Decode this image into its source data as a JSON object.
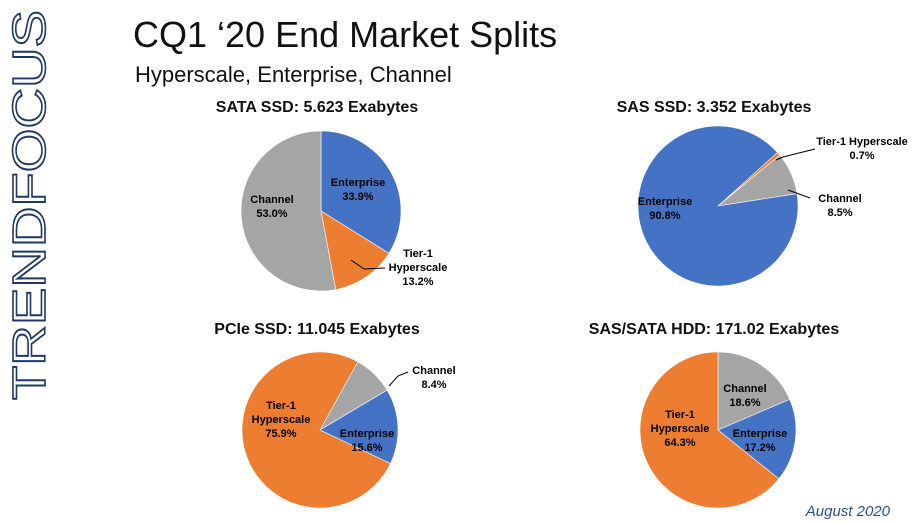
{
  "logo_text": "TRENDFOCUS",
  "slide": {
    "title": "CQ1 ‘20 End Market Splits",
    "subtitle": "Hyperscale, Enterprise, Channel",
    "footer": "August 2020"
  },
  "colors": {
    "enterprise": "#4472C4",
    "tier1": "#ED7D31",
    "channel": "#A5A5A5",
    "logo": "#1f3864",
    "footer": "#2f4f8f"
  },
  "chart_data": [
    {
      "type": "pie",
      "title": "SATA SSD:  5.623 Exabytes",
      "slices": [
        {
          "label": [
            "Enterprise",
            "33.9%"
          ],
          "value": 33.9,
          "color": "enterprise"
        },
        {
          "label": [
            "Tier-1",
            "Hyperscale",
            "13.2%"
          ],
          "value": 13.2,
          "color": "tier1"
        },
        {
          "label": [
            "Channel",
            "53.0%"
          ],
          "value": 53.0,
          "color": "channel"
        }
      ]
    },
    {
      "type": "pie",
      "title": "SAS SSD:  3.352 Exabytes",
      "slices": [
        {
          "label": [
            "Tier-1 Hyperscale",
            "0.7%"
          ],
          "value": 0.7,
          "color": "tier1"
        },
        {
          "label": [
            "Channel",
            "8.5%"
          ],
          "value": 8.5,
          "color": "channel"
        },
        {
          "label": [
            "Enterprise",
            "90.8%"
          ],
          "value": 90.8,
          "color": "enterprise"
        }
      ]
    },
    {
      "type": "pie",
      "title": "PCIe SSD:  11.045 Exabytes",
      "slices": [
        {
          "label": [
            "Channel",
            "8.4%"
          ],
          "value": 8.4,
          "color": "channel"
        },
        {
          "label": [
            "Enterprise",
            "15.6%"
          ],
          "value": 15.6,
          "color": "enterprise"
        },
        {
          "label": [
            "Tier-1",
            "Hyperscale",
            "75.9%"
          ],
          "value": 75.9,
          "color": "tier1"
        }
      ]
    },
    {
      "type": "pie",
      "title": "SAS/SATA HDD:  171.02 Exabytes",
      "slices": [
        {
          "label": [
            "Channel",
            "18.6%"
          ],
          "value": 18.6,
          "color": "channel"
        },
        {
          "label": [
            "Enterprise",
            "17.2%"
          ],
          "value": 17.2,
          "color": "enterprise"
        },
        {
          "label": [
            "Tier-1",
            "Hyperscale",
            "64.3%"
          ],
          "value": 64.3,
          "color": "tier1"
        }
      ]
    }
  ]
}
